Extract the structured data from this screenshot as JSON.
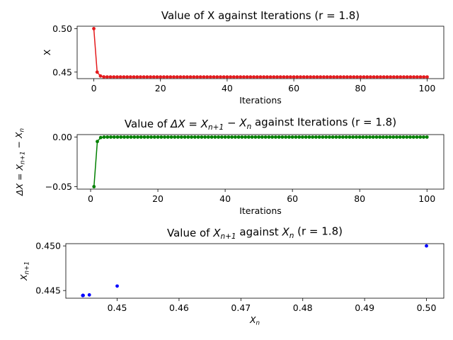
{
  "chart_data": [
    {
      "type": "line",
      "title": "Value of X against Iterations (r = 1.8)",
      "xlabel": "Iterations",
      "ylabel": "X",
      "xlim": [
        -5,
        105
      ],
      "ylim": [
        0.4425,
        0.5028
      ],
      "xticks": [
        0,
        20,
        40,
        60,
        80,
        100
      ],
      "yticks": [
        0.45,
        0.5
      ],
      "ytick_labels": [
        "0.45",
        "0.50"
      ],
      "color": "#e41a1c",
      "marker": "circle",
      "series": [
        {
          "x_range": [
            0,
            100
          ],
          "values": [
            0.5,
            0.45,
            0.4455,
            0.44451,
            0.444454,
            0.4444448,
            0.4444445,
            0.4444444,
            0.4444444,
            0.4444444,
            0.4444444,
            0.4444444,
            0.4444444,
            0.4444444,
            0.4444444,
            0.4444444,
            0.4444444,
            0.4444444,
            0.4444444,
            0.4444444,
            0.4444444,
            0.4444444,
            0.4444444,
            0.4444444,
            0.4444444,
            0.4444444,
            0.4444444,
            0.4444444,
            0.4444444,
            0.4444444,
            0.4444444,
            0.4444444,
            0.4444444,
            0.4444444,
            0.4444444,
            0.4444444,
            0.4444444,
            0.4444444,
            0.4444444,
            0.4444444,
            0.4444444,
            0.4444444,
            0.4444444,
            0.4444444,
            0.4444444,
            0.4444444,
            0.4444444,
            0.4444444,
            0.4444444,
            0.4444444,
            0.4444444,
            0.4444444,
            0.4444444,
            0.4444444,
            0.4444444,
            0.4444444,
            0.4444444,
            0.4444444,
            0.4444444,
            0.4444444,
            0.4444444,
            0.4444444,
            0.4444444,
            0.4444444,
            0.4444444,
            0.4444444,
            0.4444444,
            0.4444444,
            0.4444444,
            0.4444444,
            0.4444444,
            0.4444444,
            0.4444444,
            0.4444444,
            0.4444444,
            0.4444444,
            0.4444444,
            0.4444444,
            0.4444444,
            0.4444444,
            0.4444444,
            0.4444444,
            0.4444444,
            0.4444444,
            0.4444444,
            0.4444444,
            0.4444444,
            0.4444444,
            0.4444444,
            0.4444444,
            0.4444444,
            0.4444444,
            0.4444444,
            0.4444444,
            0.4444444,
            0.4444444,
            0.4444444,
            0.4444444,
            0.4444444,
            0.4444444,
            0.4444444
          ]
        }
      ]
    },
    {
      "type": "line",
      "title_parts": [
        "Value of ",
        "ΔX",
        " = ",
        "X",
        "n+1",
        " − ",
        "X",
        "n",
        " against Iterations (r = 1.8)"
      ],
      "xlabel": "Iterations",
      "ylabel_parts": [
        "ΔX",
        " = ",
        "X",
        "n+1",
        " − ",
        "X",
        "n"
      ],
      "xlim": [
        -4,
        105
      ],
      "ylim": [
        -0.0525,
        0.0025
      ],
      "xticks": [
        0,
        20,
        40,
        60,
        80,
        100
      ],
      "yticks": [
        -0.05,
        0
      ],
      "ytick_labels": [
        "−0.05",
        "0.00"
      ],
      "color": "#008000",
      "marker": "circle",
      "series": [
        {
          "x_range": [
            1,
            100
          ],
          "values": [
            -0.05,
            -0.0045,
            -0.00049,
            -5.6e-05,
            -6.2e-06,
            -7e-07,
            -1e-07,
            0,
            0,
            0,
            0,
            0,
            0,
            0,
            0,
            0,
            0,
            0,
            0,
            0,
            0,
            0,
            0,
            0,
            0,
            0,
            0,
            0,
            0,
            0,
            0,
            0,
            0,
            0,
            0,
            0,
            0,
            0,
            0,
            0,
            0,
            0,
            0,
            0,
            0,
            0,
            0,
            0,
            0,
            0,
            0,
            0,
            0,
            0,
            0,
            0,
            0,
            0,
            0,
            0,
            0,
            0,
            0,
            0,
            0,
            0,
            0,
            0,
            0,
            0,
            0,
            0,
            0,
            0,
            0,
            0,
            0,
            0,
            0,
            0,
            0,
            0,
            0,
            0,
            0,
            0,
            0,
            0,
            0,
            0,
            0,
            0,
            0,
            0,
            0,
            0,
            0,
            0,
            0,
            0
          ]
        }
      ]
    },
    {
      "type": "scatter",
      "title_parts": [
        "Value of ",
        "X",
        "n+1",
        " against ",
        "X",
        "n",
        " (r = 1.8)"
      ],
      "xlabel_parts": [
        "X",
        "n"
      ],
      "ylabel_parts": [
        "X",
        "n+1"
      ],
      "xlim": [
        0.4417,
        0.5028
      ],
      "ylim": [
        0.44414,
        0.45025
      ],
      "xticks": [
        0.45,
        0.46,
        0.47,
        0.48,
        0.49,
        0.5
      ],
      "xtick_labels": [
        "0.45",
        "0.46",
        "0.47",
        "0.48",
        "0.49",
        "0.50"
      ],
      "yticks": [
        0.445,
        0.45
      ],
      "ytick_labels": [
        "0.445",
        "0.450"
      ],
      "color": "#0000ff",
      "marker": "circle",
      "points": [
        [
          0.5,
          0.45
        ],
        [
          0.45,
          0.4455
        ],
        [
          0.4455,
          0.44451
        ],
        [
          0.44451,
          0.444454
        ],
        [
          0.444454,
          0.4444448
        ],
        [
          0.4444448,
          0.4444445
        ],
        [
          0.4444445,
          0.4444444
        ],
        [
          0.4444444,
          0.4444444
        ]
      ]
    }
  ]
}
